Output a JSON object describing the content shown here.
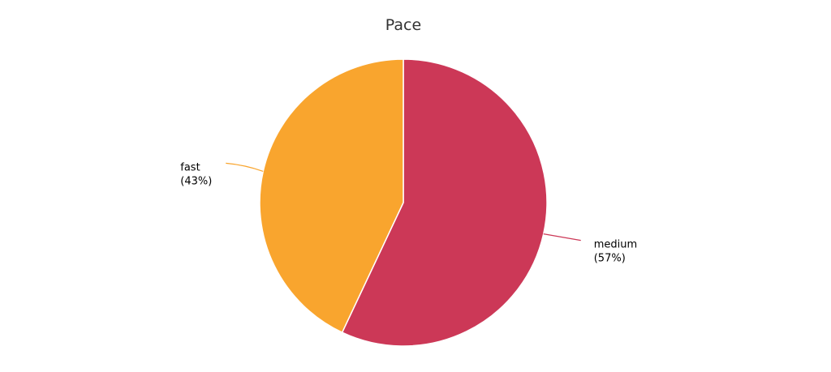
{
  "chart_data": {
    "type": "pie",
    "title": "Pace",
    "start_angle": "top, clockwise",
    "slices": [
      {
        "label": "medium",
        "percent_label": "(57%)",
        "value": 57,
        "color": "#cc3857"
      },
      {
        "label": "fast",
        "percent_label": "(43%)",
        "value": 43,
        "color": "#f9a52e"
      }
    ]
  }
}
